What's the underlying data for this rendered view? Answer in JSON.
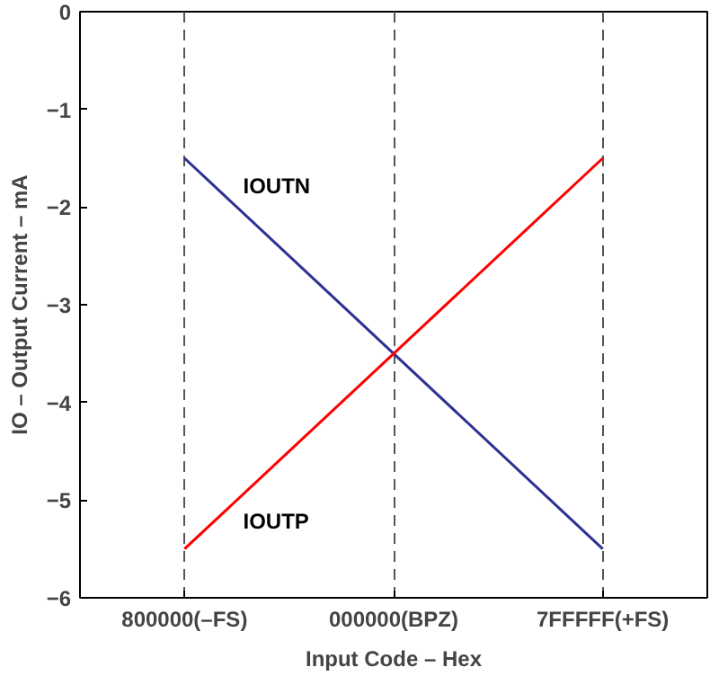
{
  "chart_data": {
    "type": "line",
    "xlabel": "Input Code – Hex",
    "ylabel": "IO – Output Current – mA",
    "categories": [
      "800000(–FS)",
      "000000(BPZ)",
      "7FFFFF(+FS)"
    ],
    "series": [
      {
        "name": "IOUTN",
        "color": "#2e3192",
        "values": [
          -1.5,
          -3.5,
          -5.5
        ]
      },
      {
        "name": "IOUTP",
        "color": "#ff0000",
        "values": [
          -5.5,
          -3.5,
          -1.5
        ]
      }
    ],
    "ylim": [
      -6,
      0
    ],
    "yticks": [
      0,
      {
        "value": -1,
        "label": "−1"
      },
      {
        "value": -2,
        "label": "−2"
      },
      {
        "value": -3,
        "label": "−3"
      },
      {
        "value": -4,
        "label": "−4"
      },
      {
        "value": -5,
        "label": "−5"
      },
      {
        "value": -6,
        "label": "−6"
      }
    ],
    "grid": "x",
    "line_style": "solid",
    "marker": "none"
  }
}
